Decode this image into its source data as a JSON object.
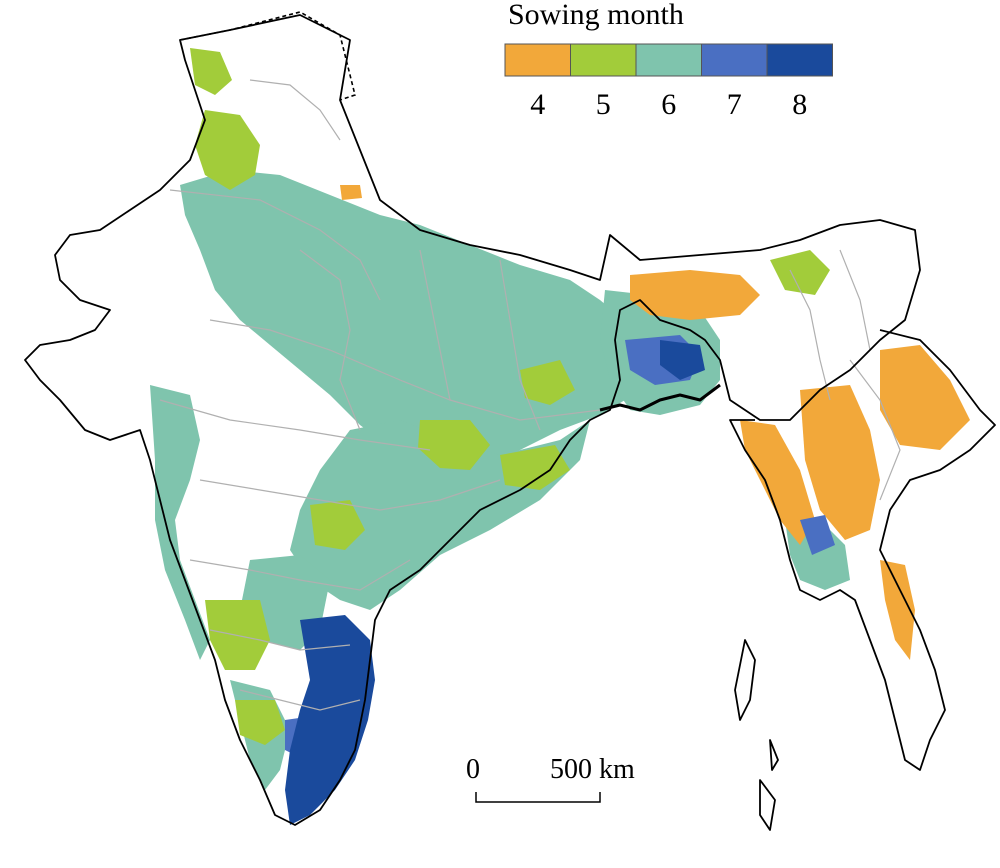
{
  "legend": {
    "title": "Sowing month",
    "items": [
      {
        "label": "4",
        "color": "#f2a83a"
      },
      {
        "label": "5",
        "color": "#a2cc3a"
      },
      {
        "label": "6",
        "color": "#7fc4ad"
      },
      {
        "label": "7",
        "color": "#4a6fc2"
      },
      {
        "label": "8",
        "color": "#1a4a9c"
      }
    ]
  },
  "scale_bar": {
    "start_label": "0",
    "end_label": "500 km"
  },
  "colors": {
    "coastline": "#000000",
    "state_border": "#b0b0b0",
    "no_data": "#ffffff"
  }
}
